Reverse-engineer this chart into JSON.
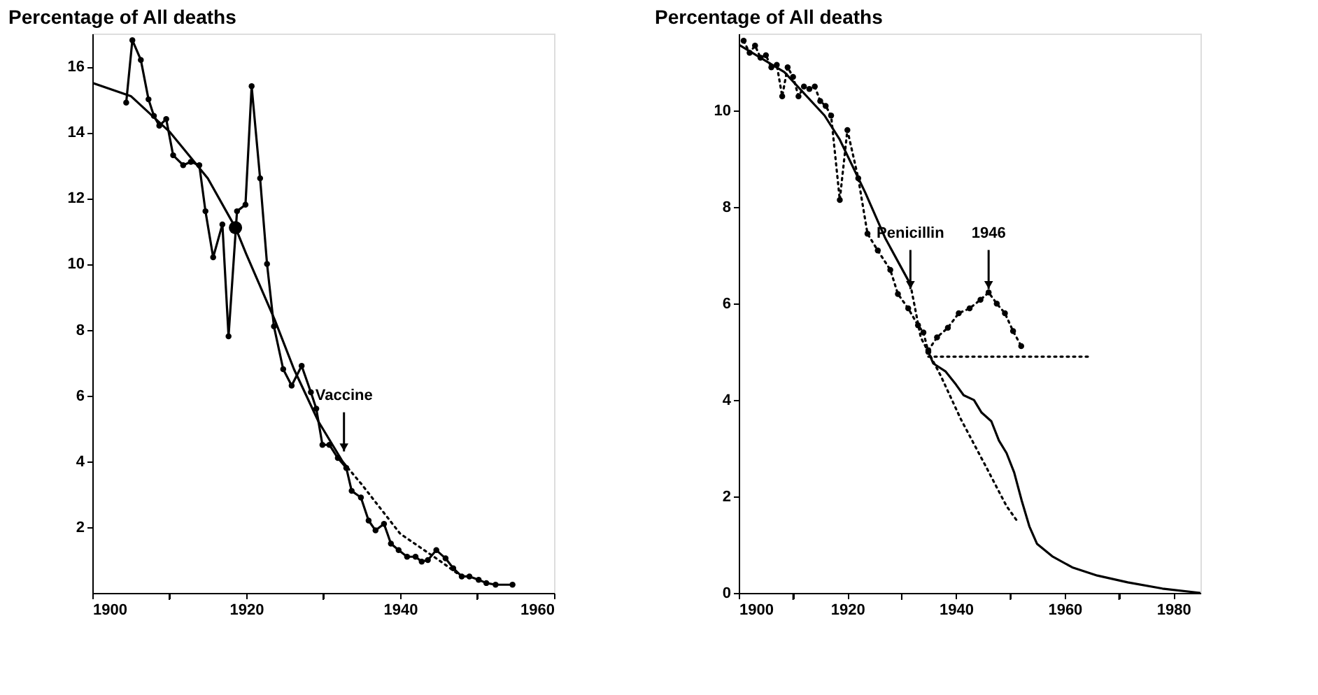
{
  "chart_data": [
    {
      "type": "line",
      "title": "Percentage of All deaths",
      "xlim": [
        1900,
        1960
      ],
      "ylim": [
        0,
        17
      ],
      "xticks": [
        1900,
        {
          "value": 1910,
          "label": null
        },
        1920,
        {
          "value": 1930,
          "label": null
        },
        1940,
        {
          "value": 1950,
          "label": null
        },
        1960
      ],
      "yticks": [
        2,
        4,
        6,
        8,
        10,
        12,
        14,
        16
      ],
      "annotations": [
        {
          "text": "Vaccine",
          "x": 1932.7,
          "y": 4.3
        }
      ],
      "series": [
        {
          "type": "line",
          "color": "#000000",
          "marker": "circle",
          "line_style": "solid",
          "x": [
            1904.4,
            1905.2,
            1906.3,
            1907.3,
            1908,
            1908.7,
            1909.6,
            1910.5,
            1911.8,
            1912.8,
            1913.9,
            1914.7,
            1915.7,
            1916.9,
            1917.7,
            1918.8,
            1919.9,
            1920.7,
            1921.8,
            1922.7,
            1923.6,
            1924.8,
            1925.9,
            1927.2,
            1928.4,
            1929.1,
            1929.9,
            1930.8,
            1931.9,
            1933,
            1933.7,
            1934.9,
            1935.9,
            1936.8,
            1937.9,
            1938.8,
            1939.8,
            1940.9,
            1942,
            1942.8,
            1943.6,
            1944.7,
            1945.9,
            1946.9,
            1948,
            1949,
            1950.2,
            1951.2,
            1952.4,
            1954.6
          ],
          "values": [
            14.9,
            16.8,
            16.2,
            15.0,
            14.5,
            14.2,
            14.4,
            13.3,
            13.0,
            13.1,
            13.0,
            11.6,
            10.2,
            11.2,
            7.8,
            11.6,
            11.8,
            15.4,
            12.6,
            10.0,
            8.1,
            6.8,
            6.3,
            6.9,
            6.1,
            5.6,
            4.5,
            4.5,
            4.1,
            3.8,
            3.1,
            2.9,
            2.2,
            1.9,
            2.1,
            1.5,
            1.3,
            1.1,
            1.1,
            0.95,
            1.0,
            1.3,
            1.05,
            0.75,
            0.5,
            0.5,
            0.4,
            0.3,
            0.25,
            0.25
          ]
        },
        {
          "type": "line",
          "color": "#000000",
          "marker": "none",
          "line_style": "solid",
          "x": [
            1900,
            1905,
            1910.1,
            1915,
            1918.6,
            1920,
            1923.7,
            1926.2,
            1929.4,
            1932.5,
            1933.2
          ],
          "values": [
            15.5,
            15.1,
            14.0,
            12.6,
            11.1,
            10.3,
            8.3,
            6.8,
            5.2,
            4.0,
            3.8
          ]
        },
        {
          "type": "line",
          "color": "#000000",
          "marker": "none",
          "line_style": "dotted",
          "x": [
            1933.2,
            1935,
            1940,
            1945,
            1948
          ],
          "values": [
            3.8,
            3.3,
            1.8,
            1.0,
            0.5
          ]
        },
        {
          "type": "scatter",
          "color": "#000000",
          "marker": "circle",
          "x": [
            1918.6
          ],
          "values": [
            11.1
          ]
        }
      ]
    },
    {
      "type": "line",
      "title": "Percentage of All deaths",
      "xlim": [
        1900,
        1985
      ],
      "ylim": [
        0,
        11.6
      ],
      "xticks": [
        1900,
        {
          "value": 1910,
          "label": null
        },
        1920,
        {
          "value": 1930,
          "label": null
        },
        1940,
        {
          "value": 1950,
          "label": null
        },
        1960,
        {
          "value": 1970,
          "label": null
        },
        1980
      ],
      "yticks": [
        0,
        2,
        4,
        6,
        8,
        10
      ],
      "annotations": [
        {
          "text": "Penicillin",
          "x": 1931.6,
          "y": 6.3
        },
        {
          "text": "1946",
          "x": 1946,
          "y": 6.3
        }
      ],
      "series": [
        {
          "type": "line",
          "color": "#000000",
          "marker": "circle",
          "line_style": "dotted",
          "x": [
            1900.9,
            1902,
            1903,
            1904,
            1905,
            1906,
            1907,
            1908,
            1909,
            1910,
            1911,
            1912,
            1913,
            1914,
            1915,
            1916,
            1917,
            1918.6,
            1920,
            1922,
            1923.7,
            1925.6,
            1927.9,
            1929.3,
            1931.2,
            1933,
            1934,
            1934.9
          ],
          "values": [
            11.45,
            11.2,
            11.35,
            11.1,
            11.15,
            10.9,
            10.95,
            10.3,
            10.9,
            10.7,
            10.3,
            10.5,
            10.45,
            10.5,
            10.2,
            10.1,
            9.9,
            8.15,
            9.6,
            8.6,
            7.45,
            7.1,
            6.7,
            6.2,
            5.9,
            5.55,
            5.4,
            5.0
          ]
        },
        {
          "type": "line",
          "color": "#000000",
          "marker": "none",
          "line_style": "solid",
          "x": [
            1900,
            1908.4,
            1915.8,
            1918.6,
            1923.3,
            1927,
            1931.6
          ],
          "values": [
            11.37,
            10.8,
            9.9,
            9.4,
            8.3,
            7.35,
            6.4
          ]
        },
        {
          "type": "line",
          "color": "#000000",
          "marker": "none",
          "line_style": "dotted",
          "x": [
            1931.6,
            1933.5,
            1937.2,
            1940.9,
            1945.6,
            1949.3,
            1951.2
          ],
          "values": [
            6.4,
            5.3,
            4.5,
            3.6,
            2.6,
            1.8,
            1.5
          ]
        },
        {
          "type": "line",
          "color": "#000000",
          "marker": "none",
          "line_style": "dotted",
          "x": [
            1934.9,
            1964.7
          ],
          "values": [
            4.9,
            4.9
          ]
        },
        {
          "type": "line",
          "color": "#000000",
          "marker": "circle",
          "line_style": "dotted",
          "x": [
            1934.9,
            1936.5,
            1938.5,
            1940.5,
            1942.5,
            1944.5,
            1946,
            1947.5,
            1949,
            1950.5,
            1952
          ],
          "values": [
            5.03,
            5.3,
            5.5,
            5.8,
            5.9,
            6.08,
            6.23,
            6.0,
            5.8,
            5.43,
            5.12
          ]
        },
        {
          "type": "line",
          "color": "#000000",
          "marker": "none",
          "line_style": "solid",
          "x": [
            1934.9,
            1935.8,
            1938.1,
            1940,
            1941.4,
            1943.3,
            1944.7,
            1946.5,
            1947.9,
            1949.3,
            1950.7,
            1952.1,
            1953.5,
            1954.9,
            1957.7,
            1961.4,
            1966,
            1971.6,
            1978,
            1985
          ],
          "values": [
            5.0,
            4.76,
            4.59,
            4.32,
            4.1,
            4.0,
            3.74,
            3.56,
            3.16,
            2.9,
            2.5,
            1.91,
            1.38,
            1.02,
            0.76,
            0.53,
            0.36,
            0.22,
            0.09,
            0.0
          ]
        }
      ]
    }
  ]
}
